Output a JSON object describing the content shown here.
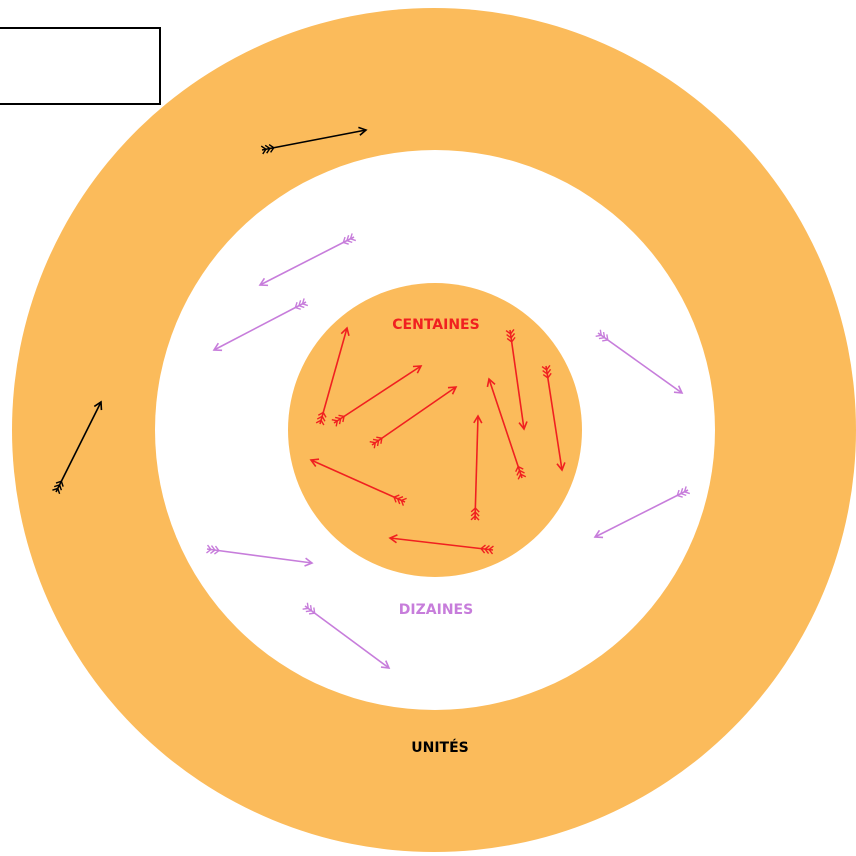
{
  "labels": {
    "centaines": "CENTAINES",
    "dizaines": "DIZAINES",
    "unites": "UNITÉS"
  }
}
